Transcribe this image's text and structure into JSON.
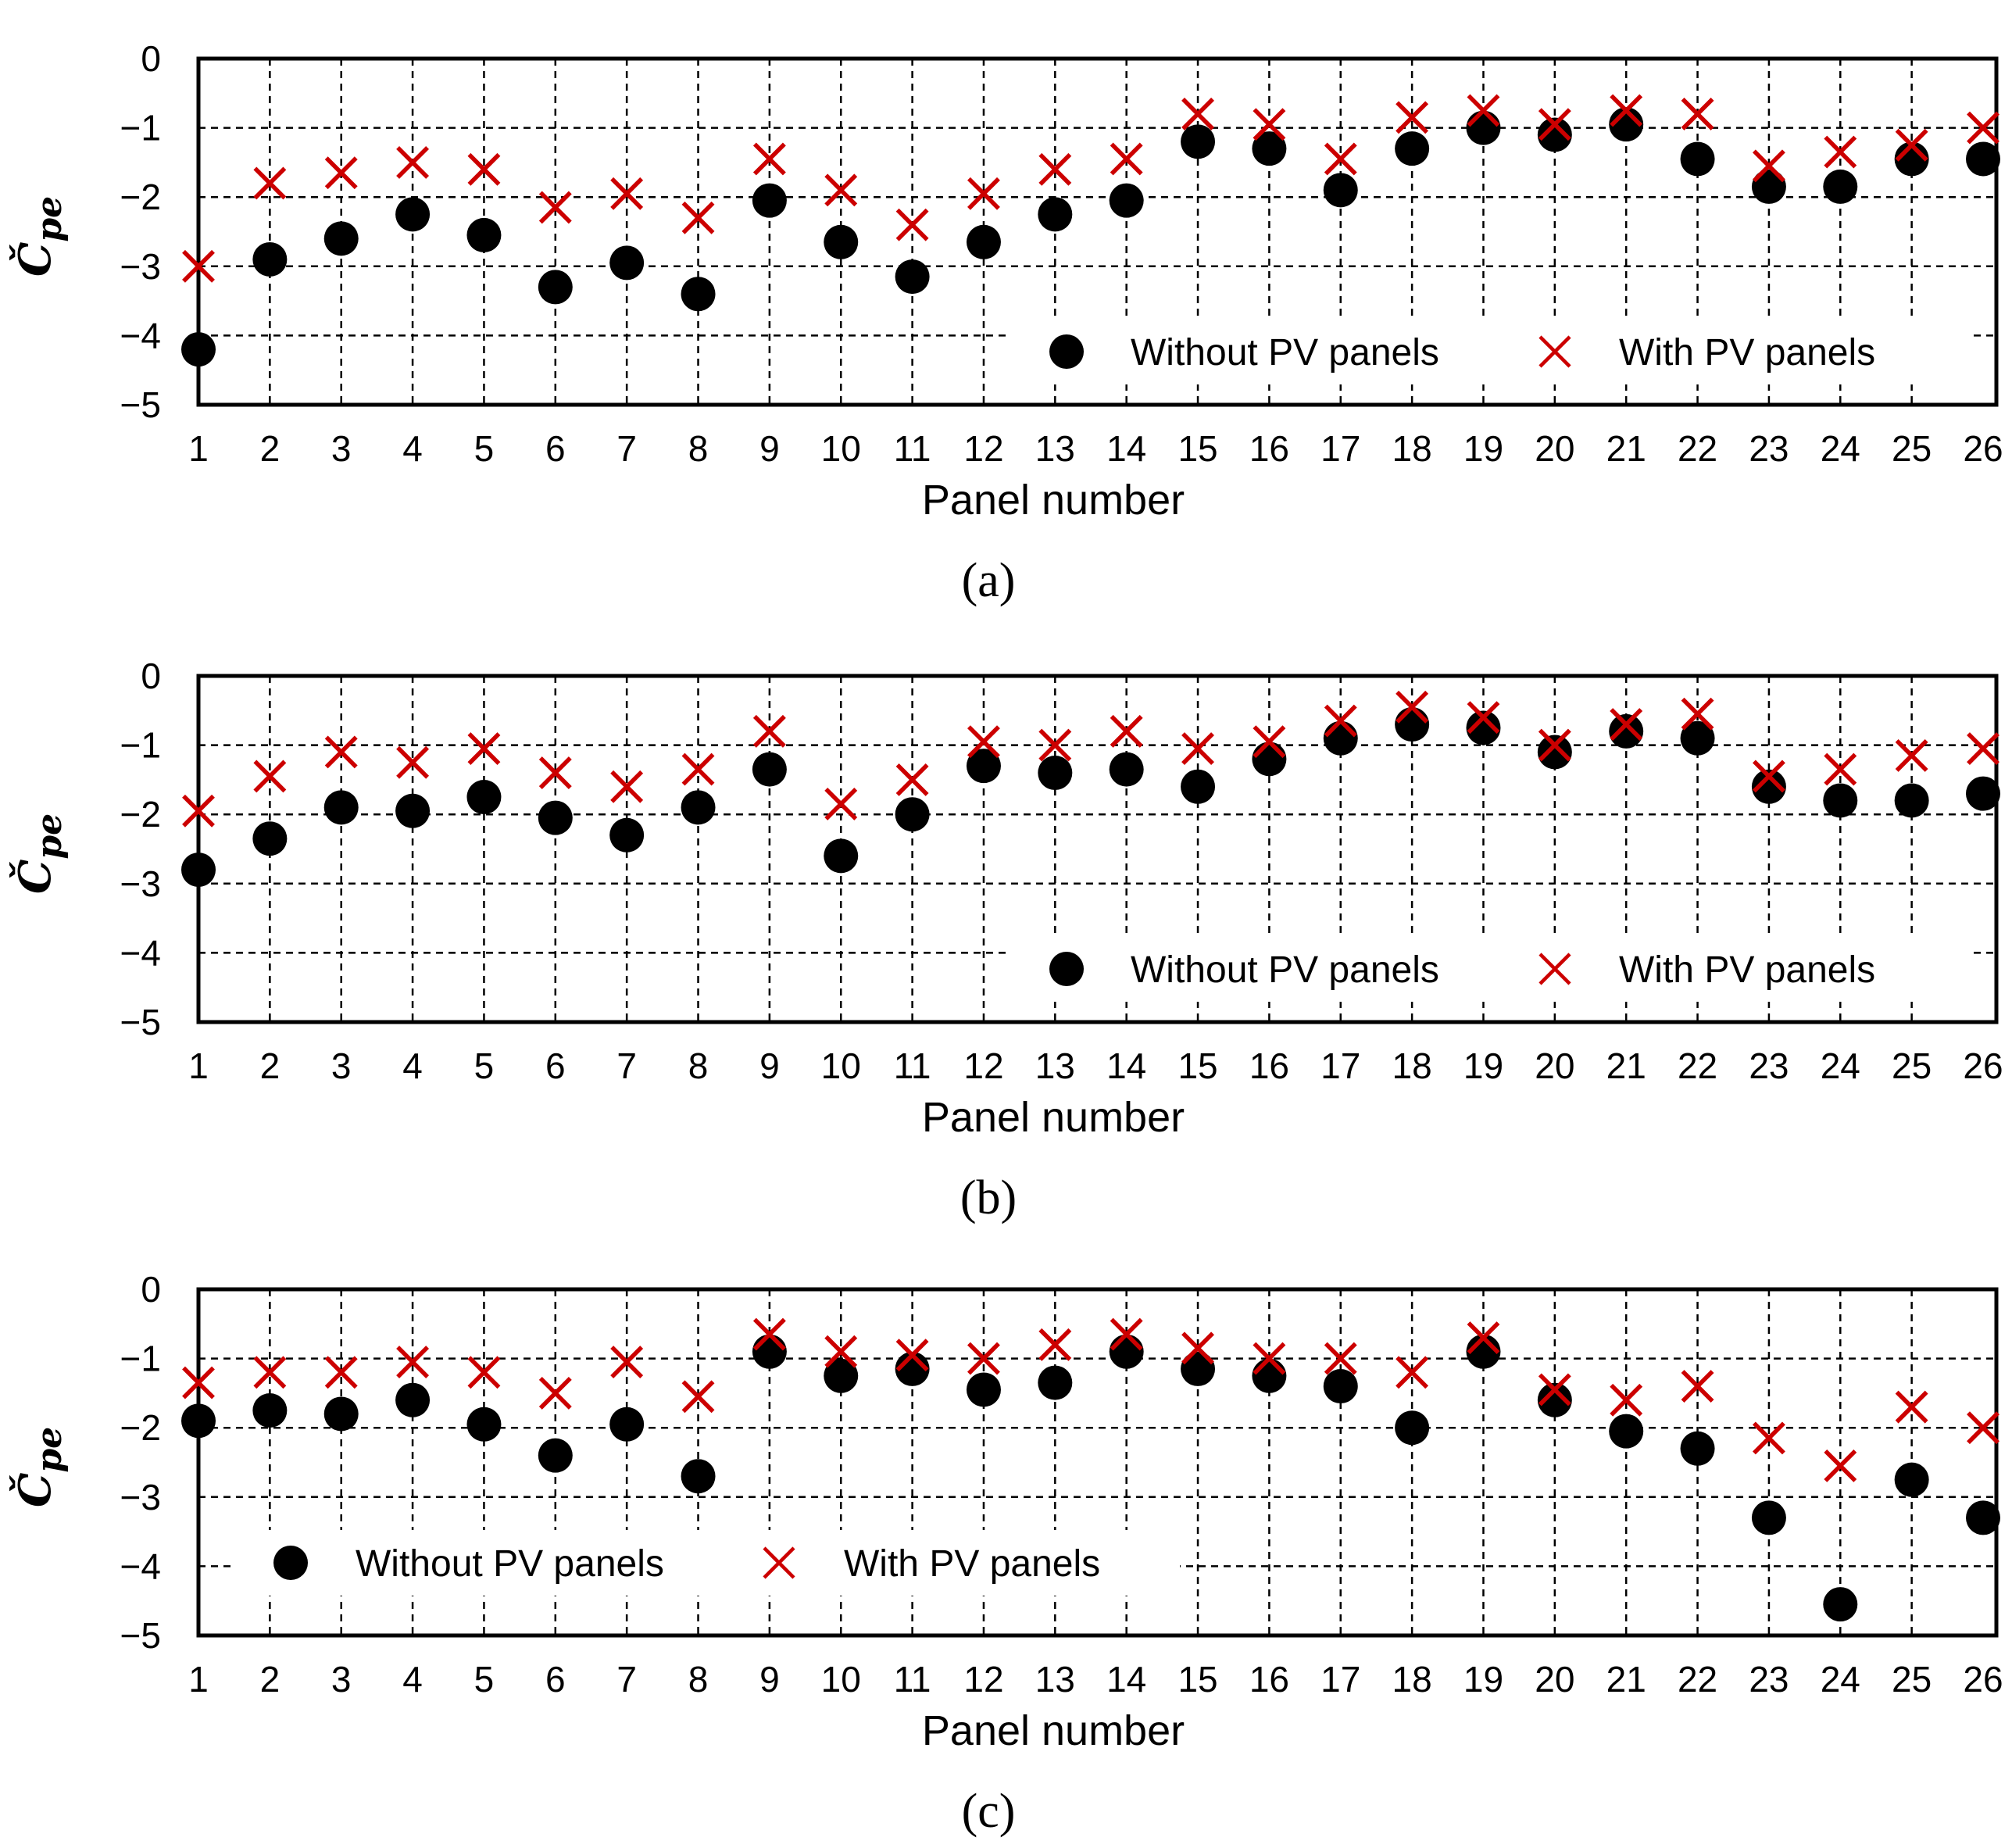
{
  "chart_data": [
    {
      "type": "scatter",
      "caption": "(a)",
      "xlabel": "Panel number",
      "ylabel": "Č",
      "ylabel_sub": "pe",
      "xlim": [
        1,
        26
      ],
      "ylim": [
        -5,
        0
      ],
      "x_ticks": [
        "1",
        "2",
        "3",
        "4",
        "5",
        "6",
        "7",
        "8",
        "9",
        "10",
        "11",
        "12",
        "13",
        "14",
        "15",
        "16",
        "17",
        "18",
        "19",
        "20",
        "21",
        "22",
        "23",
        "24",
        "25",
        "26"
      ],
      "y_ticks": [
        "0",
        "−1",
        "−2",
        "−3",
        "−4",
        "−5"
      ],
      "grid": true,
      "legend_position": "lower-right",
      "x": [
        1,
        2,
        3,
        4,
        5,
        6,
        7,
        8,
        9,
        10,
        11,
        12,
        13,
        14,
        15,
        16,
        17,
        18,
        19,
        20,
        21,
        22,
        23,
        24,
        25,
        26
      ],
      "series": [
        {
          "name": "Without PV panels",
          "marker": "circle",
          "color": "#000000",
          "values": [
            -4.2,
            -2.9,
            -2.6,
            -2.25,
            -2.55,
            -3.3,
            -2.95,
            -3.4,
            -2.05,
            -2.65,
            -3.15,
            -2.65,
            -2.25,
            -2.05,
            -1.2,
            -1.3,
            -1.9,
            -1.3,
            -1.0,
            -1.1,
            -0.95,
            -1.45,
            -1.85,
            -1.85,
            -1.45,
            -1.45
          ]
        },
        {
          "name": "With PV panels",
          "marker": "x",
          "color": "#cc0000",
          "values": [
            -3.0,
            -1.8,
            -1.65,
            -1.5,
            -1.6,
            -2.15,
            -1.95,
            -2.3,
            -1.45,
            -1.9,
            -2.4,
            -1.95,
            -1.6,
            -1.45,
            -0.8,
            -0.95,
            -1.45,
            -0.85,
            -0.75,
            -0.95,
            -0.75,
            -0.8,
            -1.55,
            -1.35,
            -1.25,
            -1.0
          ]
        }
      ]
    },
    {
      "type": "scatter",
      "caption": "(b)",
      "xlabel": "Panel number",
      "ylabel": "Č",
      "ylabel_sub": "pe",
      "xlim": [
        1,
        26
      ],
      "ylim": [
        -5,
        0
      ],
      "x_ticks": [
        "1",
        "2",
        "3",
        "4",
        "5",
        "6",
        "7",
        "8",
        "9",
        "10",
        "11",
        "12",
        "13",
        "14",
        "15",
        "16",
        "17",
        "18",
        "19",
        "20",
        "21",
        "22",
        "23",
        "24",
        "25",
        "26"
      ],
      "y_ticks": [
        "0",
        "−1",
        "−2",
        "−3",
        "−4",
        "−5"
      ],
      "grid": true,
      "legend_position": "lower-right",
      "x": [
        1,
        2,
        3,
        4,
        5,
        6,
        7,
        8,
        9,
        10,
        11,
        12,
        13,
        14,
        15,
        16,
        17,
        18,
        19,
        20,
        21,
        22,
        23,
        24,
        25,
        26
      ],
      "series": [
        {
          "name": "Without PV panels",
          "marker": "circle",
          "color": "#000000",
          "values": [
            -2.8,
            -2.35,
            -1.9,
            -1.95,
            -1.75,
            -2.05,
            -2.3,
            -1.9,
            -1.35,
            -2.6,
            -2.0,
            -1.3,
            -1.4,
            -1.35,
            -1.6,
            -1.2,
            -0.9,
            -0.7,
            -0.75,
            -1.1,
            -0.8,
            -0.9,
            -1.6,
            -1.8,
            -1.8,
            -1.7
          ]
        },
        {
          "name": "With PV panels",
          "marker": "x",
          "color": "#cc0000",
          "values": [
            -1.95,
            -1.45,
            -1.1,
            -1.25,
            -1.05,
            -1.4,
            -1.6,
            -1.35,
            -0.8,
            -1.85,
            -1.5,
            -0.95,
            -1.0,
            -0.8,
            -1.05,
            -0.95,
            -0.65,
            -0.45,
            -0.6,
            -1.0,
            -0.7,
            -0.55,
            -1.45,
            -1.35,
            -1.15,
            -1.05
          ]
        }
      ]
    },
    {
      "type": "scatter",
      "caption": "(c)",
      "xlabel": "Panel number",
      "ylabel": "Č",
      "ylabel_sub": "pe",
      "xlim": [
        1,
        26
      ],
      "ylim": [
        -5,
        0
      ],
      "x_ticks": [
        "1",
        "2",
        "3",
        "4",
        "5",
        "6",
        "7",
        "8",
        "9",
        "10",
        "11",
        "12",
        "13",
        "14",
        "15",
        "16",
        "17",
        "18",
        "19",
        "20",
        "21",
        "22",
        "23",
        "24",
        "25",
        "26"
      ],
      "y_ticks": [
        "0",
        "−1",
        "−2",
        "−3",
        "−4",
        "−5"
      ],
      "grid": true,
      "legend_position": "lower-left",
      "x": [
        1,
        2,
        3,
        4,
        5,
        6,
        7,
        8,
        9,
        10,
        11,
        12,
        13,
        14,
        15,
        16,
        17,
        18,
        19,
        20,
        21,
        22,
        23,
        24,
        25,
        26
      ],
      "series": [
        {
          "name": "Without PV panels",
          "marker": "circle",
          "color": "#000000",
          "values": [
            -1.9,
            -1.75,
            -1.8,
            -1.6,
            -1.95,
            -2.4,
            -1.95,
            -2.7,
            -0.9,
            -1.25,
            -1.15,
            -1.45,
            -1.35,
            -0.9,
            -1.15,
            -1.25,
            -1.4,
            -2.0,
            -0.9,
            -1.6,
            -2.05,
            -2.3,
            -3.3,
            -4.55,
            -2.75,
            -3.3
          ]
        },
        {
          "name": "With PV panels",
          "marker": "x",
          "color": "#cc0000",
          "values": [
            -1.35,
            -1.2,
            -1.2,
            -1.05,
            -1.2,
            -1.5,
            -1.05,
            -1.55,
            -0.65,
            -0.9,
            -0.95,
            -1.0,
            -0.8,
            -0.65,
            -0.85,
            -1.0,
            -1.0,
            -1.2,
            -0.7,
            -1.45,
            -1.6,
            -1.4,
            -2.15,
            -2.55,
            -1.7,
            -2.0
          ]
        }
      ]
    }
  ]
}
